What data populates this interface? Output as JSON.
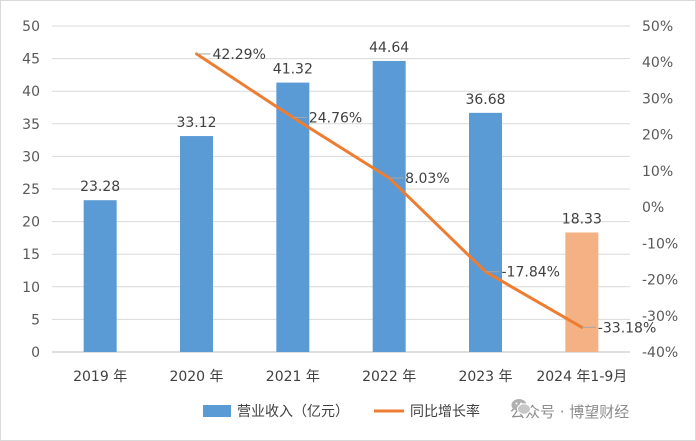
{
  "chart_data": {
    "type": "bar",
    "categories": [
      "2019 年",
      "2020 年",
      "2021 年",
      "2022 年",
      "2023 年",
      "2024 年1-9月"
    ],
    "series": [
      {
        "name": "营业收入（亿元）",
        "type": "bar",
        "axis": "left",
        "values": [
          23.28,
          33.12,
          41.32,
          44.64,
          36.68,
          18.33
        ],
        "labels": [
          "23.28",
          "33.12",
          "41.32",
          "44.64",
          "36.68",
          "18.33"
        ],
        "colors": [
          "#5b9bd5",
          "#5b9bd5",
          "#5b9bd5",
          "#5b9bd5",
          "#5b9bd5",
          "#f4b183"
        ]
      },
      {
        "name": "同比增长率",
        "type": "line",
        "axis": "right",
        "values": [
          null,
          42.29,
          24.76,
          8.03,
          -17.84,
          -33.18
        ],
        "labels": [
          "",
          "42.29%",
          "24.76%",
          "8.03%",
          "-17.84%",
          "-33.18%"
        ],
        "color": "#ed7d31"
      }
    ],
    "y_left": {
      "min": 0,
      "max": 50,
      "step": 5,
      "ticks": [
        "0",
        "5",
        "10",
        "15",
        "20",
        "25",
        "30",
        "35",
        "40",
        "45",
        "50"
      ]
    },
    "y_right": {
      "min": -40,
      "max": 50,
      "step": 10,
      "ticks": [
        "-40%",
        "-30%",
        "-20%",
        "-10%",
        "0%",
        "10%",
        "20%",
        "30%",
        "40%",
        "50%"
      ]
    },
    "grid": true,
    "legend": "bottom-center"
  },
  "watermark": {
    "text": "公众号 · 博望财经",
    "icon": "wechat-logo-icon"
  }
}
